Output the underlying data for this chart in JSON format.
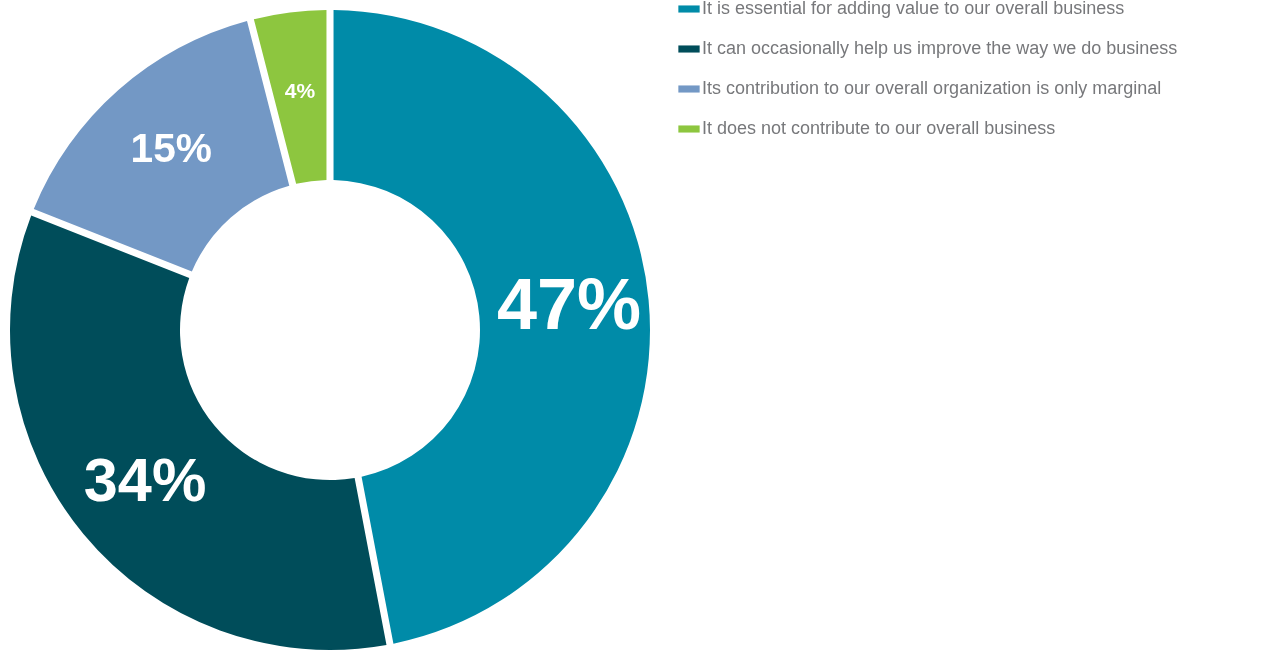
{
  "chart_data": {
    "type": "donut",
    "categories": [
      "It is essential for adding value to our overall business",
      "It can occasionally help us improve the way we do business",
      "Its contribution to our overall organization is only marginal",
      "It does not contribute to our overall business"
    ],
    "values": [
      47,
      34,
      15,
      4
    ],
    "colors": [
      "#008ba8",
      "#004d5a",
      "#7398c5",
      "#8dc63f"
    ],
    "value_labels": [
      "47%",
      "34%",
      "15%",
      "4%"
    ],
    "legend": "right"
  }
}
